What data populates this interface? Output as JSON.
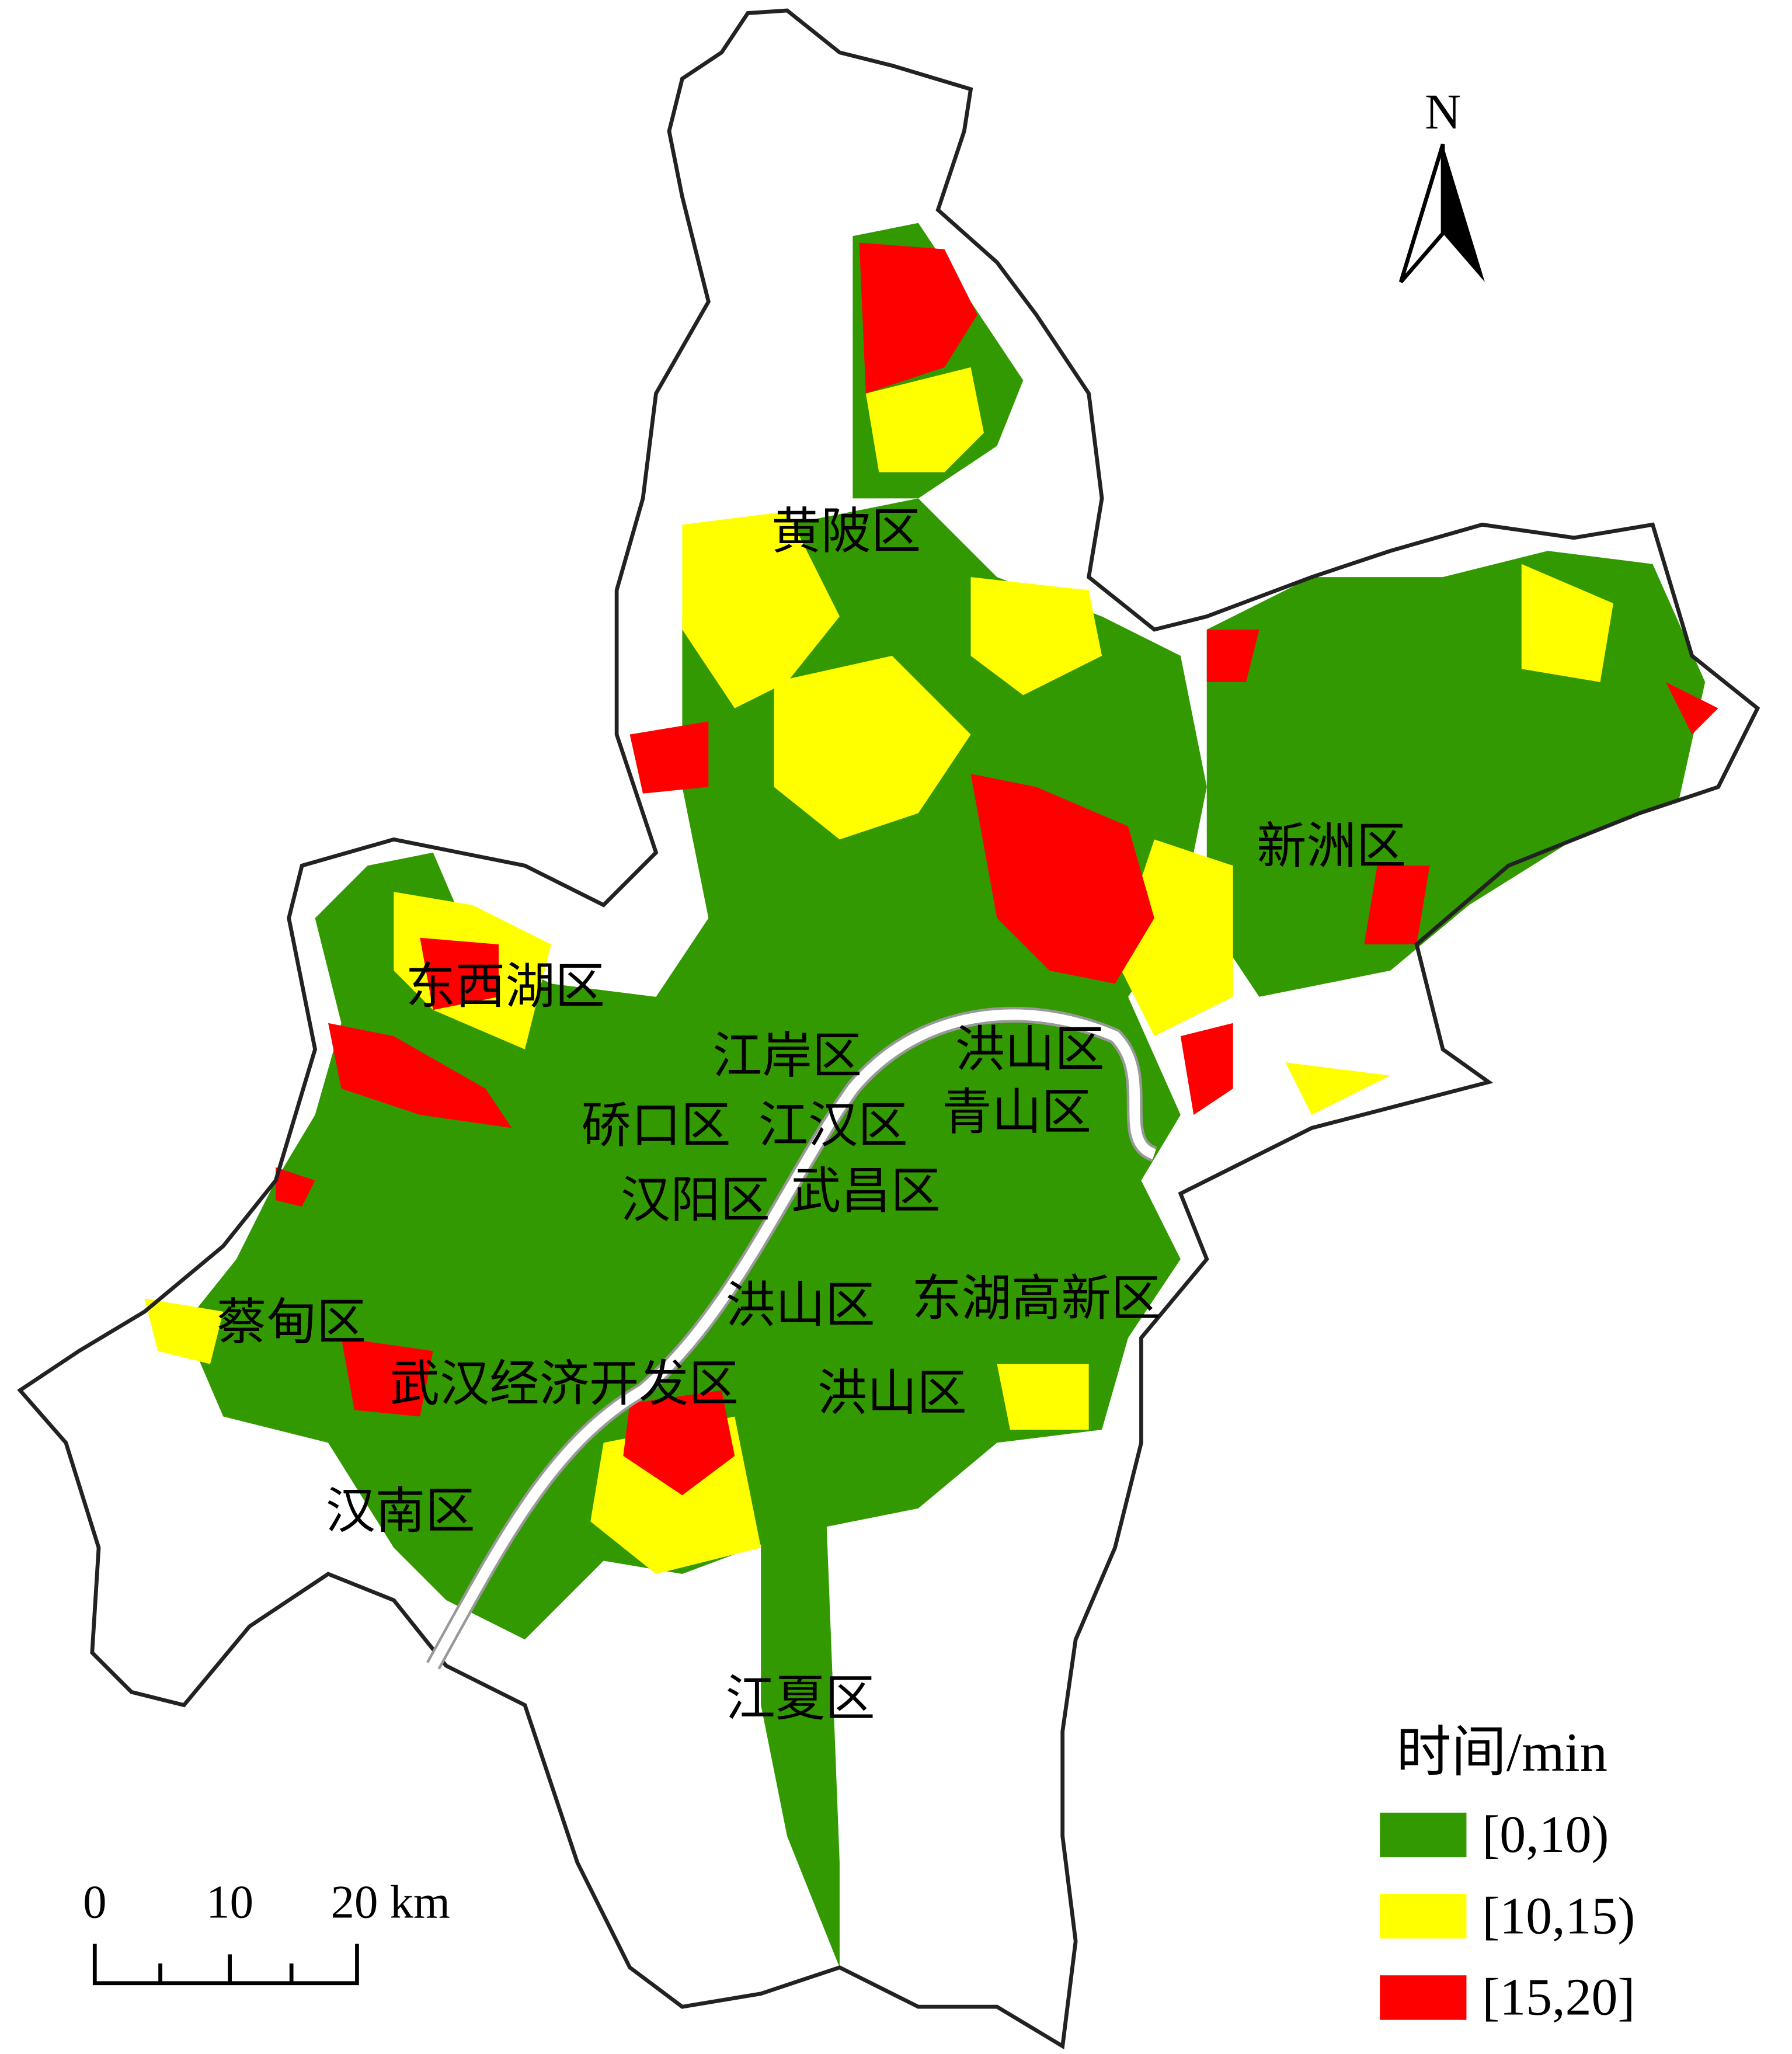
{
  "north_arrow": {
    "label": "N"
  },
  "district_labels": [
    "黄陂区",
    "新洲区",
    "东西湖区",
    "江岸区",
    "洪山区",
    "硚口区",
    "江汉区",
    "青山区",
    "汉阳区",
    "武昌区",
    "洪山区",
    "东湖高新区",
    "蔡甸区",
    "武汉经济开发区",
    "洪山区",
    "汉南区",
    "江夏区"
  ],
  "legend": {
    "title": "时间/min",
    "items": [
      {
        "label": "[0,10)",
        "color": "#339900"
      },
      {
        "label": "[10,15)",
        "color": "#ffff00"
      },
      {
        "label": "[15,20]",
        "color": "#ff0000"
      }
    ]
  },
  "scale_bar": {
    "labels": [
      "0",
      "10",
      "20 km"
    ]
  }
}
